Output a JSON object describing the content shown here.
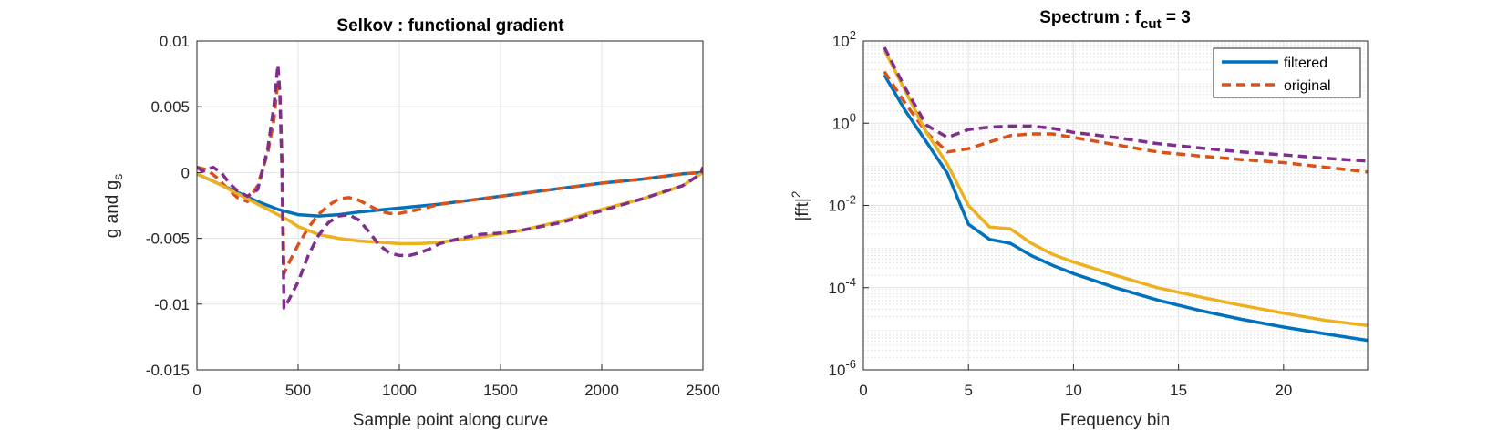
{
  "chart_data": [
    {
      "type": "line",
      "title": "Selkov : functional gradient",
      "xlabel": "Sample point along curve",
      "ylabel": "g and g",
      "ylabel_sub": "s",
      "xlim": [
        0,
        2500
      ],
      "ylim": [
        -0.015,
        0.01
      ],
      "xticks": [
        0,
        500,
        1000,
        1500,
        2000,
        2500
      ],
      "xtick_labels": [
        "0",
        "500",
        "1000",
        "1500",
        "2000",
        "2500"
      ],
      "yticks": [
        -0.015,
        -0.01,
        -0.005,
        0,
        0.005,
        0.01
      ],
      "ytick_labels": [
        "-0.015",
        "-0.01",
        "-0.005",
        "0",
        "0.005",
        "0.01"
      ],
      "grid": true,
      "series": [
        {
          "color": "#0072BD",
          "dash": "solid",
          "x": [
            0,
            100,
            200,
            300,
            400,
            500,
            600,
            700,
            800,
            1000,
            1200,
            1400,
            1600,
            1800,
            2000,
            2200,
            2400,
            2500
          ],
          "y": [
            -0.0001,
            -0.0008,
            -0.0015,
            -0.0022,
            -0.0028,
            -0.0032,
            -0.0033,
            -0.0032,
            -0.003,
            -0.0027,
            -0.0024,
            -0.002,
            -0.0016,
            -0.0012,
            -0.0008,
            -0.0005,
            -0.0001,
            0
          ]
        },
        {
          "color": "#D95319",
          "dash": "dashed",
          "x": [
            0,
            50,
            100,
            150,
            200,
            250,
            300,
            350,
            380,
            400,
            410,
            420,
            430,
            450,
            500,
            550,
            600,
            650,
            700,
            750,
            800,
            850,
            900,
            950,
            1000,
            1100,
            1200,
            1400,
            1600,
            1800,
            2000,
            2200,
            2400,
            2490,
            2500
          ],
          "y": [
            0.0004,
            0.0002,
            -0.0004,
            -0.0012,
            -0.0019,
            -0.0022,
            -0.001,
            0.0015,
            0.004,
            0.007,
            0.006,
            0.001,
            -0.0077,
            -0.007,
            -0.0055,
            -0.0042,
            -0.0032,
            -0.0025,
            -0.002,
            -0.0019,
            -0.0021,
            -0.0025,
            -0.0029,
            -0.0031,
            -0.0031,
            -0.0028,
            -0.0024,
            -0.002,
            -0.0016,
            -0.0012,
            -0.0008,
            -0.0005,
            -0.0001,
            0,
            0.0004
          ]
        },
        {
          "color": "#EDB120",
          "dash": "solid",
          "x": [
            0,
            100,
            200,
            300,
            400,
            450,
            500,
            600,
            700,
            800,
            900,
            1000,
            1100,
            1200,
            1300,
            1400,
            1600,
            1800,
            2000,
            2200,
            2400,
            2500
          ],
          "y": [
            -0.0001,
            -0.0008,
            -0.0016,
            -0.0024,
            -0.0032,
            -0.0036,
            -0.0041,
            -0.0047,
            -0.005,
            -0.0052,
            -0.0053,
            -0.0054,
            -0.0054,
            -0.0053,
            -0.0051,
            -0.0049,
            -0.0044,
            -0.0037,
            -0.0028,
            -0.002,
            -0.001,
            0
          ]
        },
        {
          "color": "#7E2F8E",
          "dash": "dashed",
          "x": [
            0,
            30,
            60,
            80,
            120,
            160,
            200,
            250,
            300,
            350,
            380,
            400,
            410,
            420,
            430,
            450,
            500,
            550,
            600,
            650,
            700,
            750,
            800,
            850,
            900,
            950,
            1000,
            1050,
            1100,
            1150,
            1200,
            1300,
            1400,
            1500,
            1600,
            1800,
            2000,
            2200,
            2400,
            2490,
            2500
          ],
          "y": [
            0.0004,
            0.0001,
            0.0003,
            0.0004,
            0.0,
            -0.0008,
            -0.0014,
            -0.0018,
            -0.0013,
            0.0018,
            0.005,
            0.0082,
            0.006,
            0.0005,
            -0.0103,
            -0.0098,
            -0.0083,
            -0.0063,
            -0.0048,
            -0.0038,
            -0.0033,
            -0.0032,
            -0.0036,
            -0.0045,
            -0.0055,
            -0.0061,
            -0.0063,
            -0.0063,
            -0.0061,
            -0.0058,
            -0.0054,
            -0.005,
            -0.0047,
            -0.0046,
            -0.0044,
            -0.0038,
            -0.0029,
            -0.002,
            -0.001,
            -0.0001,
            0.0004
          ]
        }
      ]
    },
    {
      "type": "line",
      "title": "Spectrum : f",
      "title_sub": "cut",
      "title_tail": " = 3",
      "xlabel": "Frequency bin",
      "ylabel": "|fft|",
      "ylabel_sup": "2",
      "yscale": "log",
      "xlim": [
        0,
        24
      ],
      "ylim": [
        1e-06,
        100
      ],
      "xticks": [
        0,
        5,
        10,
        15,
        20
      ],
      "xtick_labels": [
        "0",
        "5",
        "10",
        "15",
        "20"
      ],
      "yticks": [
        1e-06,
        0.0001,
        0.01,
        1,
        100
      ],
      "ytick_base": "10",
      "ytick_exps": [
        "-6",
        "-4",
        "-2",
        "0",
        "2"
      ],
      "grid": true,
      "minor_grid": true,
      "legend": {
        "location": "top-right",
        "entries": [
          {
            "label": "filtered",
            "color": "#0072BD",
            "dash": "solid"
          },
          {
            "label": "original",
            "color": "#D95319",
            "dash": "dashed"
          }
        ]
      },
      "series": [
        {
          "color": "#0072BD",
          "dash": "solid",
          "x": [
            1,
            2,
            3,
            4,
            5,
            6,
            7,
            8,
            9,
            10,
            12,
            14,
            16,
            18,
            20,
            22,
            24
          ],
          "y": [
            15,
            2,
            0.35,
            0.06,
            0.0035,
            0.0015,
            0.0012,
            0.0006,
            0.00035,
            0.00022,
            0.0001,
            5e-05,
            2.8e-05,
            1.7e-05,
            1.1e-05,
            7.5e-06,
            5.2e-06
          ]
        },
        {
          "color": "#D95319",
          "dash": "dashed",
          "x": [
            1,
            2,
            3,
            4,
            5,
            6,
            7,
            8,
            9,
            10,
            12,
            14,
            16,
            18,
            20,
            22,
            24
          ],
          "y": [
            18,
            3,
            0.6,
            0.2,
            0.24,
            0.35,
            0.5,
            0.55,
            0.55,
            0.45,
            0.3,
            0.2,
            0.16,
            0.13,
            0.11,
            0.085,
            0.065
          ]
        },
        {
          "color": "#EDB120",
          "dash": "solid",
          "x": [
            1,
            2,
            3,
            4,
            5,
            6,
            7,
            8,
            9,
            10,
            12,
            14,
            16,
            18,
            20,
            22,
            24
          ],
          "y": [
            60,
            6,
            0.6,
            0.1,
            0.01,
            0.003,
            0.0027,
            0.0012,
            0.00065,
            0.00042,
            0.0002,
            0.0001,
            6e-05,
            3.7e-05,
            2.4e-05,
            1.6e-05,
            1.2e-05
          ]
        },
        {
          "color": "#7E2F8E",
          "dash": "dashed",
          "x": [
            1,
            2,
            3,
            4,
            5,
            6,
            7,
            8,
            9,
            10,
            12,
            14,
            16,
            18,
            20,
            22,
            24
          ],
          "y": [
            70,
            7,
            0.9,
            0.45,
            0.7,
            0.8,
            0.85,
            0.85,
            0.75,
            0.6,
            0.45,
            0.32,
            0.25,
            0.2,
            0.17,
            0.14,
            0.12
          ]
        }
      ]
    }
  ]
}
